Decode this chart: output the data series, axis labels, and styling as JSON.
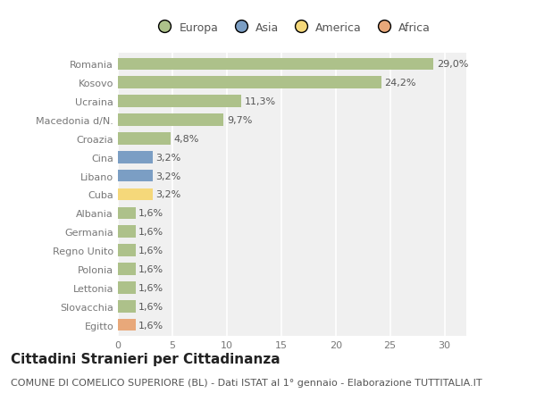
{
  "categories": [
    "Romania",
    "Kosovo",
    "Ucraina",
    "Macedonia d/N.",
    "Croazia",
    "Cina",
    "Libano",
    "Cuba",
    "Albania",
    "Germania",
    "Regno Unito",
    "Polonia",
    "Lettonia",
    "Slovacchia",
    "Egitto"
  ],
  "values": [
    29.0,
    24.2,
    11.3,
    9.7,
    4.8,
    3.2,
    3.2,
    3.2,
    1.6,
    1.6,
    1.6,
    1.6,
    1.6,
    1.6,
    1.6
  ],
  "labels": [
    "29,0%",
    "24,2%",
    "11,3%",
    "9,7%",
    "4,8%",
    "3,2%",
    "3,2%",
    "3,2%",
    "1,6%",
    "1,6%",
    "1,6%",
    "1,6%",
    "1,6%",
    "1,6%",
    "1,6%"
  ],
  "continents": [
    "Europa",
    "Europa",
    "Europa",
    "Europa",
    "Europa",
    "Asia",
    "Asia",
    "America",
    "Europa",
    "Europa",
    "Europa",
    "Europa",
    "Europa",
    "Europa",
    "Africa"
  ],
  "continent_colors": {
    "Europa": "#adc18a",
    "Asia": "#7b9ec4",
    "America": "#f5d87a",
    "Africa": "#e8a87a"
  },
  "legend_entries": [
    "Europa",
    "Asia",
    "America",
    "Africa"
  ],
  "legend_colors": [
    "#adc18a",
    "#7b9ec4",
    "#f5d87a",
    "#e8a87a"
  ],
  "background_color": "#ffffff",
  "plot_bg_color": "#f0f0f0",
  "grid_color": "#ffffff",
  "xlim": [
    0,
    32
  ],
  "xticks": [
    0,
    5,
    10,
    15,
    20,
    25,
    30
  ],
  "title": "Cittadini Stranieri per Cittadinanza",
  "subtitle": "COMUNE DI COMELICO SUPERIORE (BL) - Dati ISTAT al 1° gennaio - Elaborazione TUTTITALIA.IT",
  "title_fontsize": 11,
  "subtitle_fontsize": 8,
  "label_fontsize": 8,
  "tick_fontsize": 8,
  "legend_fontsize": 9,
  "bar_height": 0.65
}
